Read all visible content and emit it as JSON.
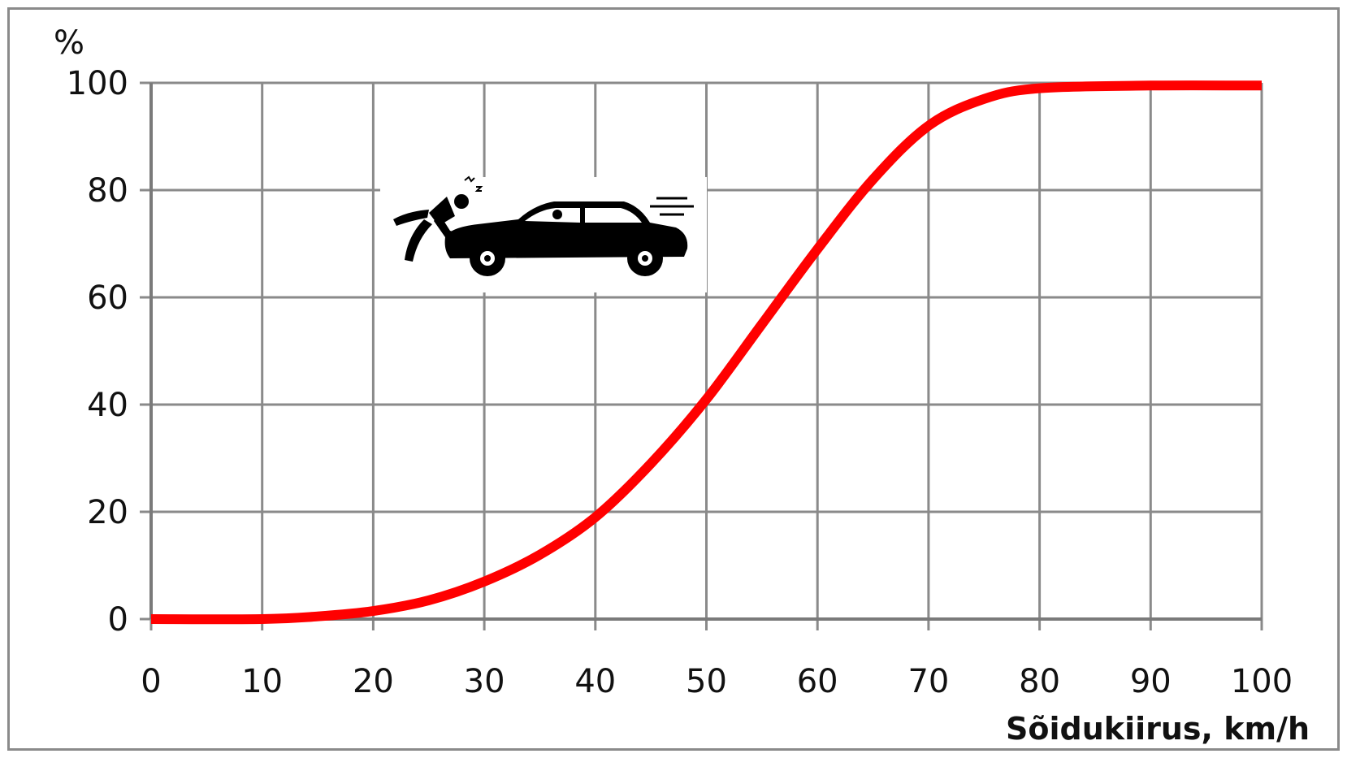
{
  "chart_data": {
    "type": "line",
    "title": "",
    "xlabel": "Sõidukiirus, km/h",
    "ylabel": "%",
    "xlim": [
      0,
      100
    ],
    "ylim": [
      0,
      100
    ],
    "x_ticks": [
      0,
      10,
      20,
      30,
      40,
      50,
      60,
      70,
      80,
      90,
      100
    ],
    "y_ticks": [
      0,
      20,
      40,
      60,
      80,
      100
    ],
    "grid": true,
    "legend": "none",
    "series": [
      {
        "color": "#ff0000",
        "x": [
          0,
          10,
          15,
          20,
          25,
          30,
          35,
          40,
          45,
          50,
          55,
          60,
          65,
          70,
          75,
          80,
          90,
          100
        ],
        "y": [
          0,
          0,
          0.5,
          1.5,
          3.5,
          7,
          12,
          19,
          29,
          41,
          55,
          69,
          82,
          92,
          97,
          99,
          99.5,
          99.5
        ]
      }
    ],
    "illustration": "car-hitting-pedestrian-icon"
  }
}
